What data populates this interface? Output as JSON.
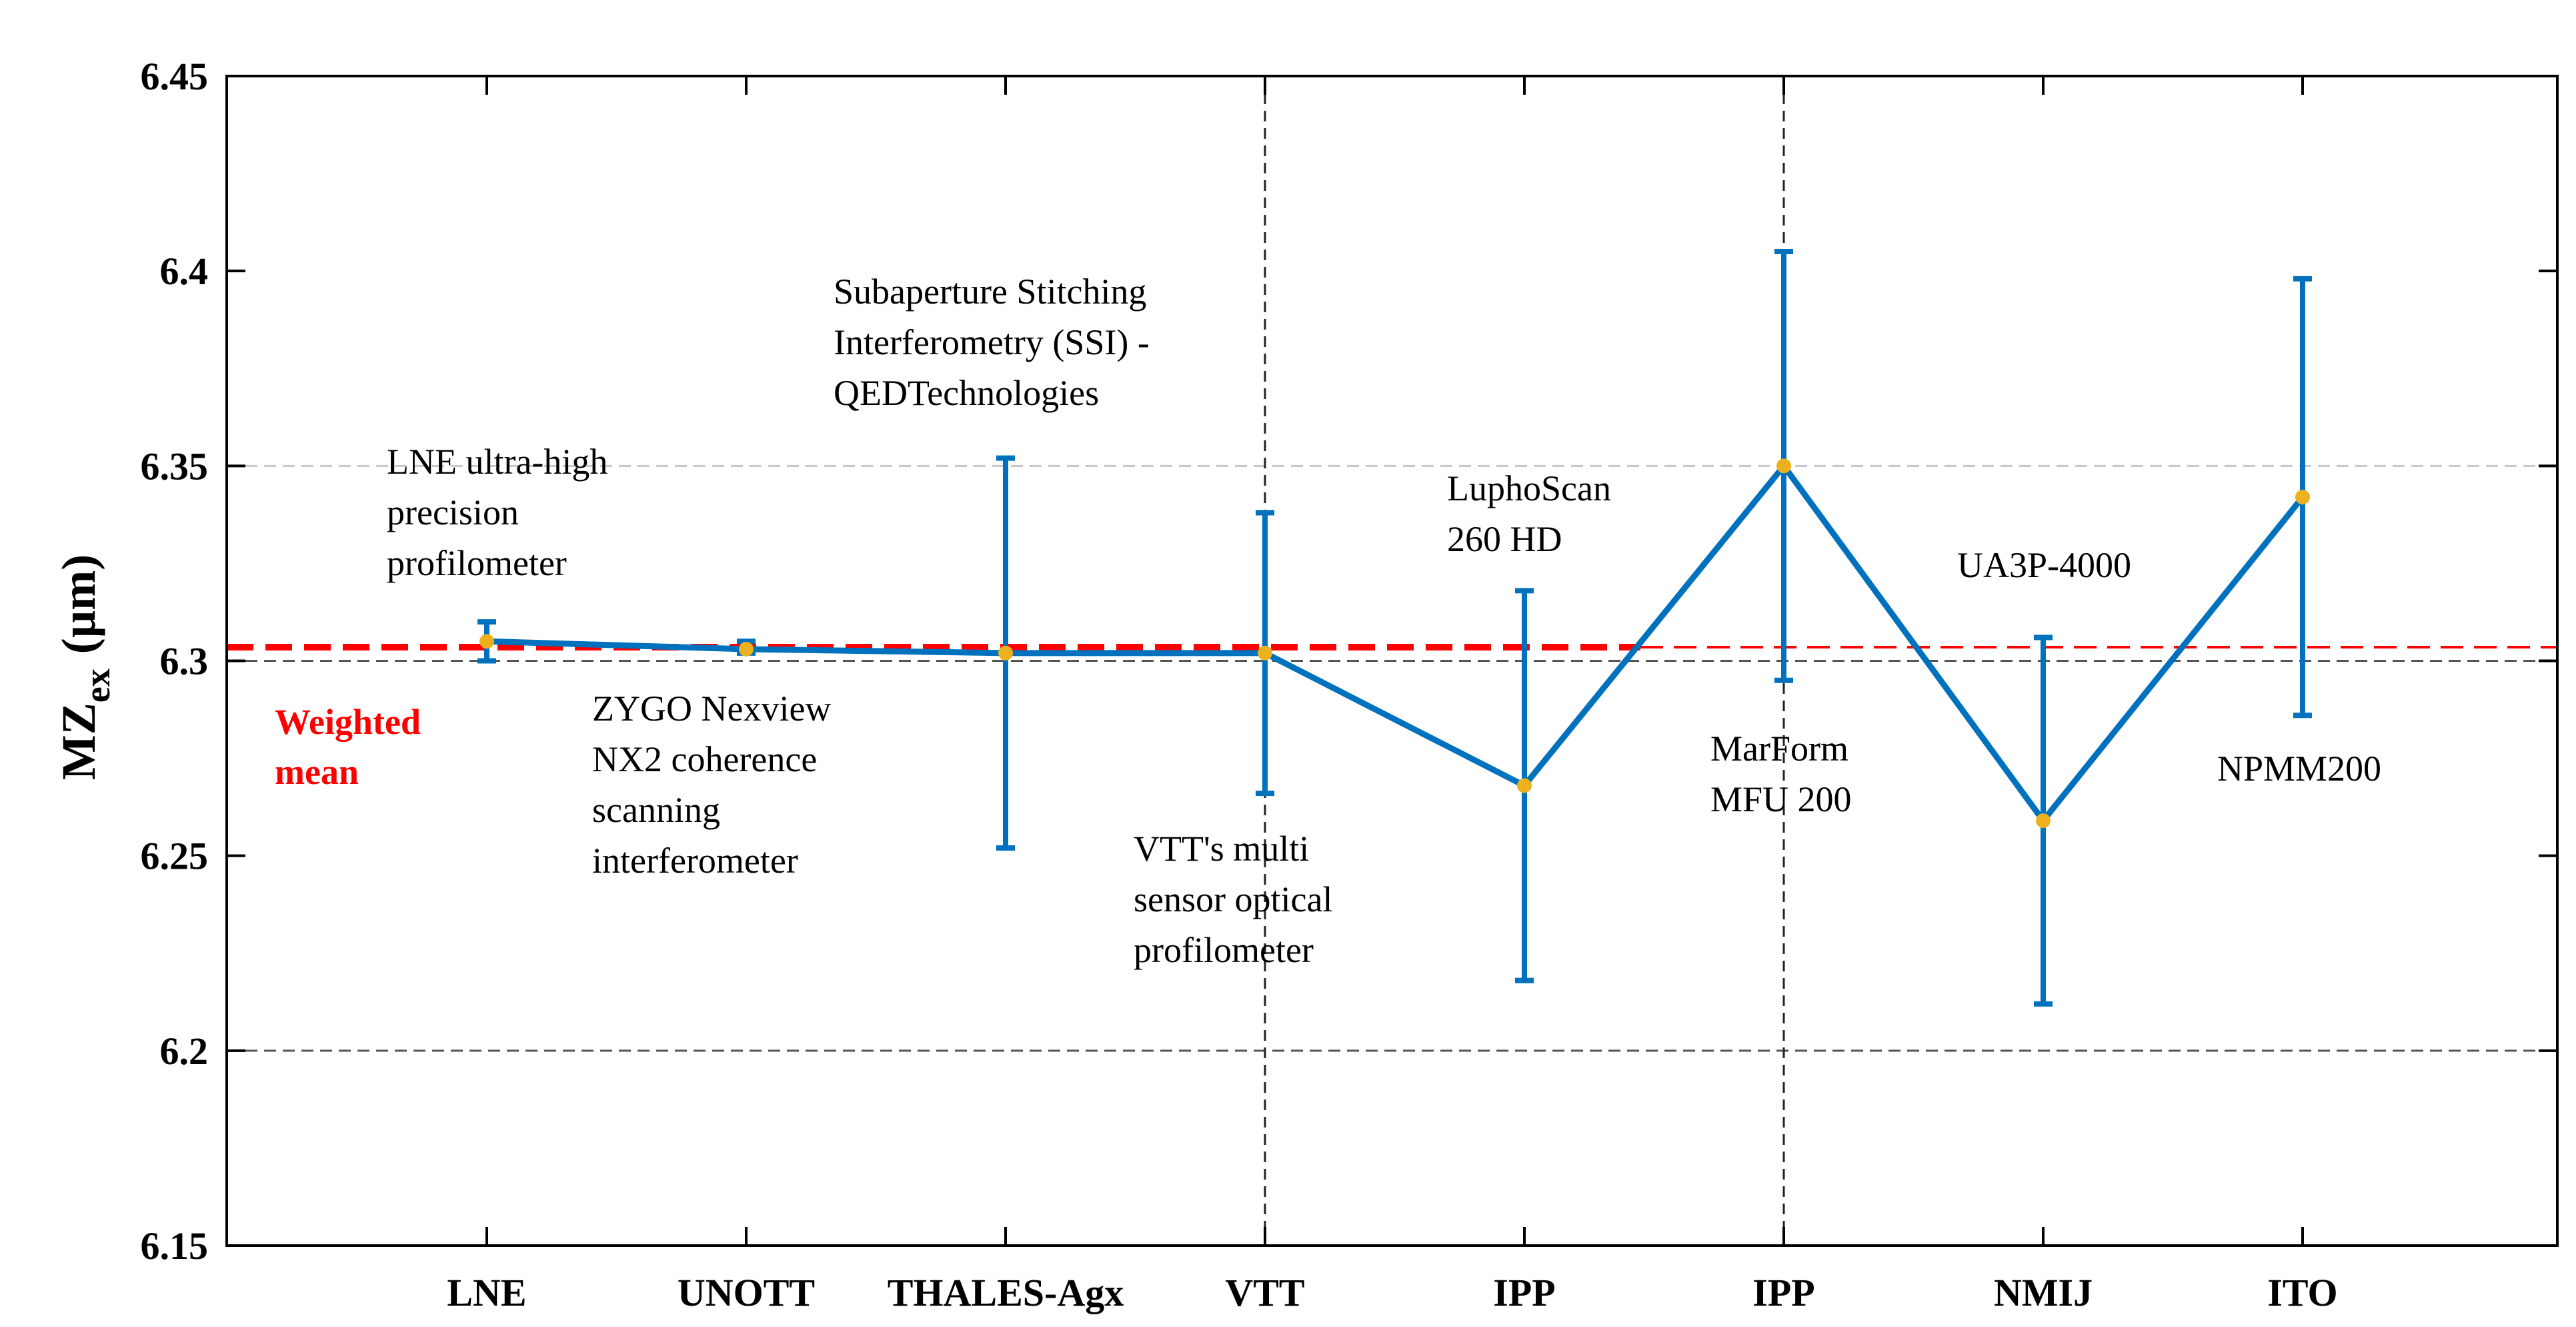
{
  "chart_data": {
    "type": "line",
    "title": "",
    "xlabel": "",
    "ylabel": {
      "main": "MZ",
      "sub": "ex",
      "unit": "(µm)"
    },
    "ylim": [
      6.15,
      6.45
    ],
    "yticks": [
      "6.15",
      "6.2",
      "6.25",
      "6.3",
      "6.35",
      "6.4",
      "6.45"
    ],
    "categories": [
      "LNE",
      "UNOTT",
      "THALES-Agx",
      "VTT",
      "IPP",
      "IPP",
      "NMIJ",
      "ITO"
    ],
    "series": [
      {
        "name": "MZex",
        "values": [
          6.305,
          6.303,
          6.302,
          6.302,
          6.268,
          6.35,
          6.259,
          6.342
        ],
        "err_low": [
          6.3,
          6.302,
          6.252,
          6.266,
          6.218,
          6.295,
          6.212,
          6.286
        ],
        "err_high": [
          6.31,
          6.305,
          6.352,
          6.338,
          6.318,
          6.405,
          6.306,
          6.398
        ]
      }
    ],
    "weighted_mean": {
      "label_lines": [
        "Weighted",
        "mean"
      ],
      "value": 6.3035
    },
    "annotations": [
      {
        "lines": [
          "LNE ultra-high",
          "precision",
          "profilometer"
        ]
      },
      {
        "lines": [
          "ZYGO Nexview",
          "NX2 coherence",
          "scanning",
          "interferometer"
        ]
      },
      {
        "lines": [
          "Subaperture Stitching",
          "Interferometry (SSI) -",
          "QEDTechnologies"
        ]
      },
      {
        "lines": [
          "VTT's multi",
          "sensor optical",
          "profilometer"
        ]
      },
      {
        "lines": [
          "LuphoScan",
          "260 HD"
        ]
      },
      {
        "lines": [
          "MarForm",
          "MFU 200"
        ]
      },
      {
        "lines": [
          "UA3P-4000"
        ]
      },
      {
        "lines": [
          "NPMM200"
        ]
      }
    ],
    "colors": {
      "series": "#0072bd",
      "marker": "#edb120",
      "mean": "#ff0000",
      "grid": "#808080"
    }
  }
}
